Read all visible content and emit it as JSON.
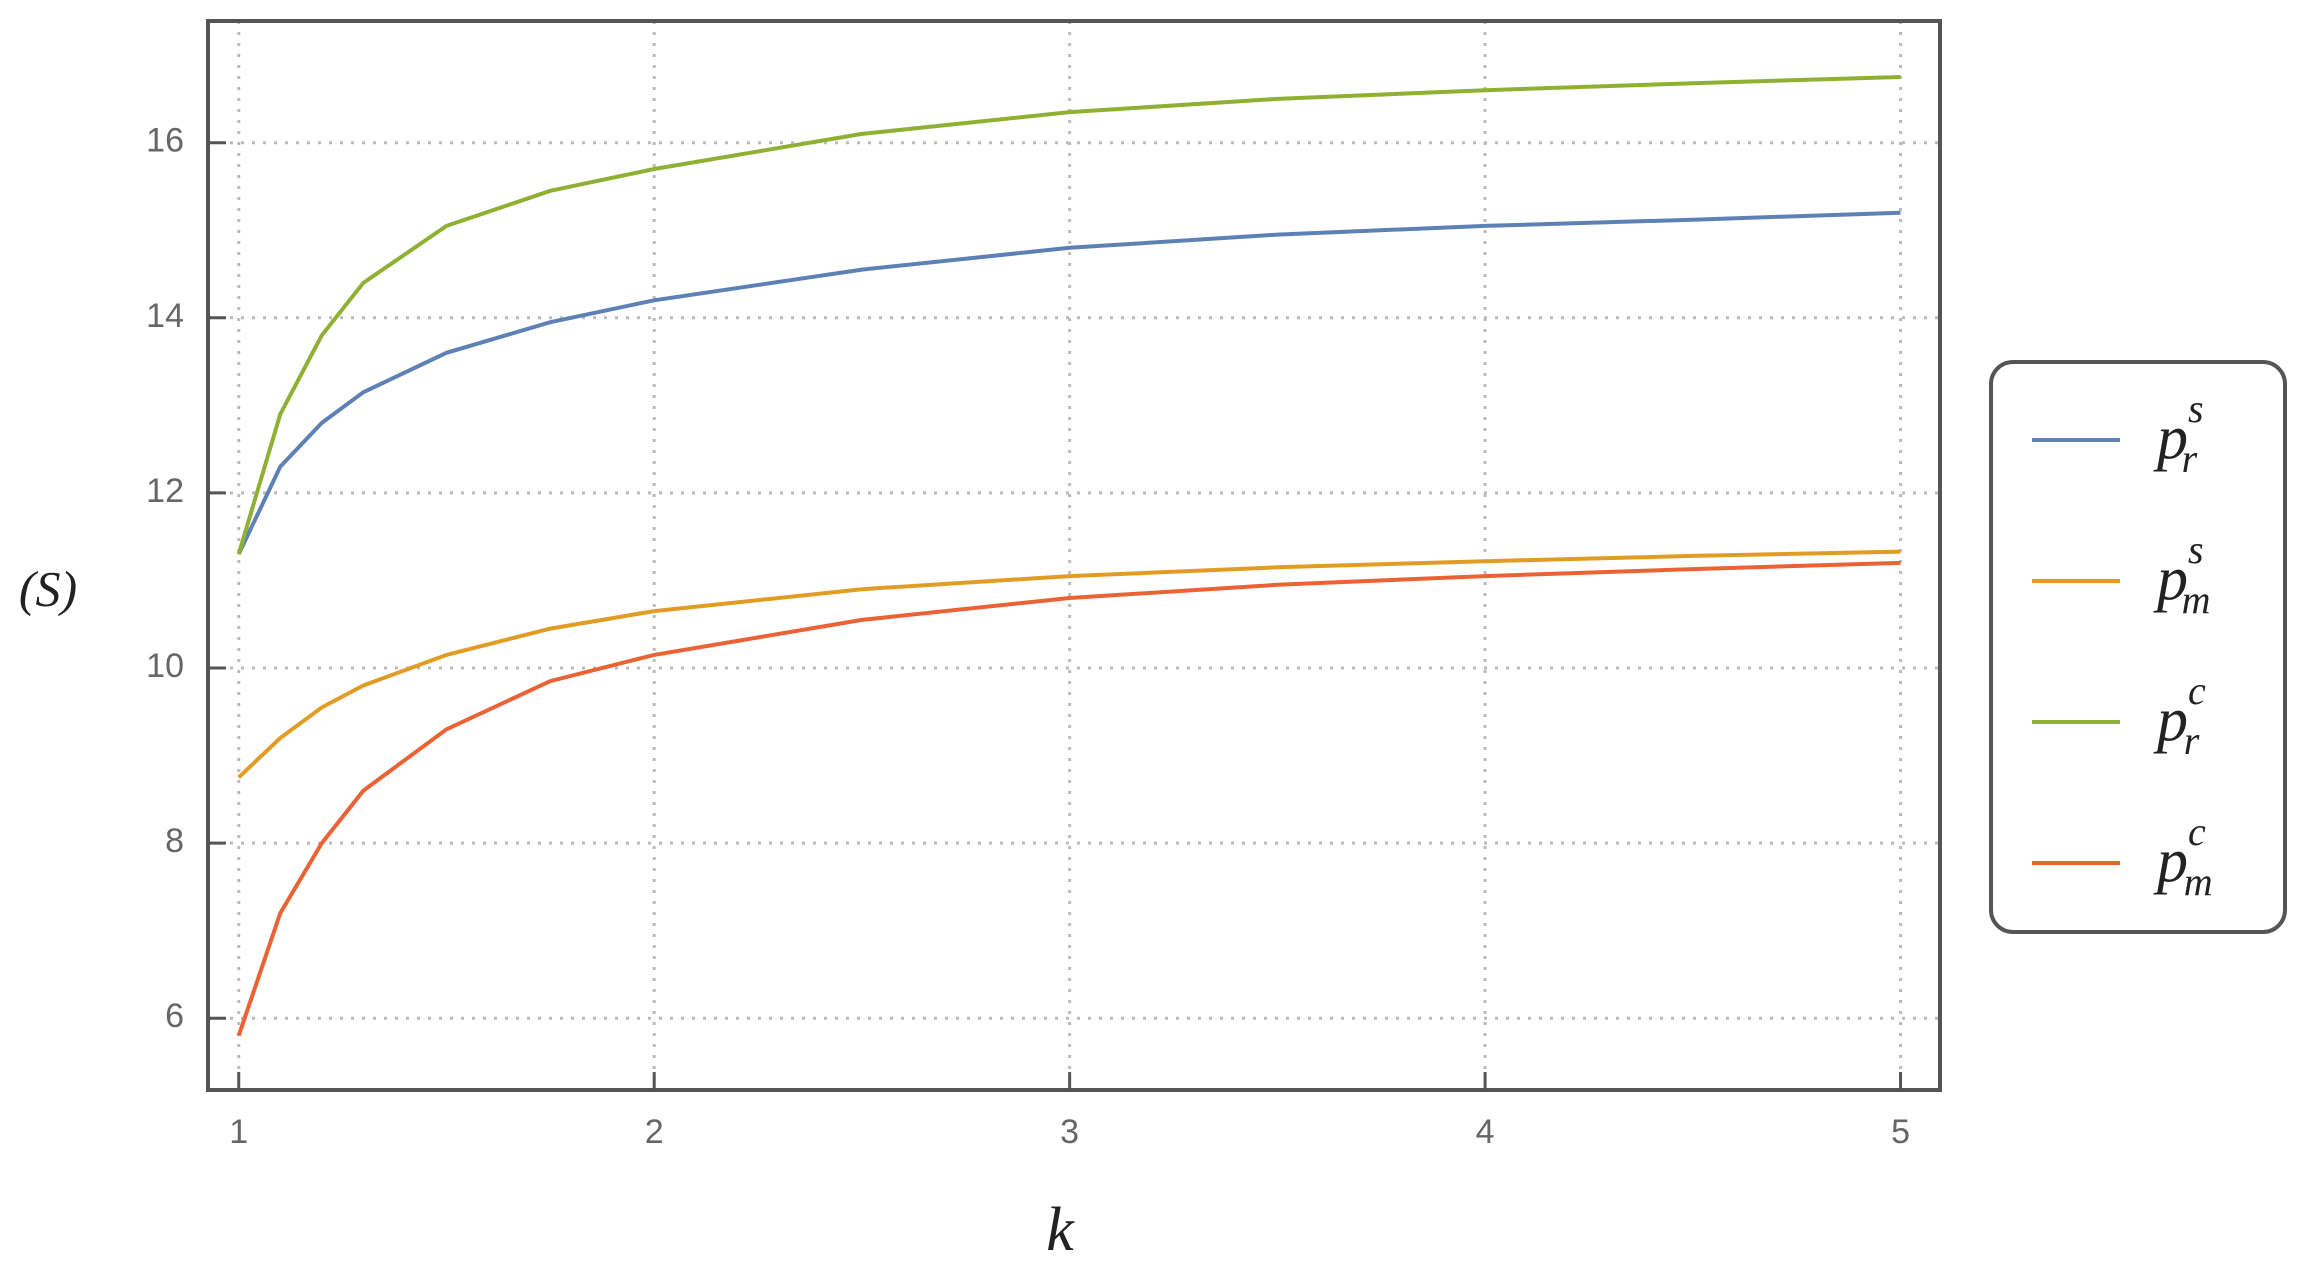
{
  "chart_data": {
    "type": "line",
    "x_label": "k",
    "y_label": "(S)",
    "x": [
      1,
      1.1,
      1.2,
      1.3,
      1.5,
      1.75,
      2,
      2.5,
      3,
      3.5,
      4,
      4.5,
      5
    ],
    "series": [
      {
        "name": "p",
        "subscript": "r",
        "superscript": "s",
        "color": "#5e81b5",
        "values": [
          11.3,
          12.3,
          12.8,
          13.15,
          13.6,
          13.95,
          14.2,
          14.55,
          14.8,
          14.95,
          15.05,
          15.12,
          15.2
        ]
      },
      {
        "name": "p",
        "subscript": "m",
        "superscript": "s",
        "color": "#e19c24",
        "values": [
          8.75,
          9.2,
          9.55,
          9.8,
          10.15,
          10.45,
          10.65,
          10.9,
          11.05,
          11.15,
          11.22,
          11.28,
          11.33
        ]
      },
      {
        "name": "p",
        "subscript": "r",
        "superscript": "c",
        "color": "#8fb032",
        "values": [
          11.3,
          12.9,
          13.8,
          14.4,
          15.05,
          15.45,
          15.7,
          16.1,
          16.35,
          16.5,
          16.6,
          16.68,
          16.75
        ]
      },
      {
        "name": "p",
        "subscript": "m",
        "superscript": "c",
        "color": "#eb6235",
        "values": [
          5.8,
          7.2,
          8.0,
          8.6,
          9.3,
          9.85,
          10.15,
          10.55,
          10.8,
          10.95,
          11.05,
          11.13,
          11.2
        ]
      }
    ],
    "xlim": [
      0.926,
      5.095
    ],
    "ylim": [
      5.18,
      17.39
    ],
    "xticks": [
      1,
      2,
      3,
      4,
      5
    ],
    "yticks": [
      6,
      8,
      10,
      12,
      14,
      16
    ],
    "grid": true,
    "legend": "right"
  }
}
